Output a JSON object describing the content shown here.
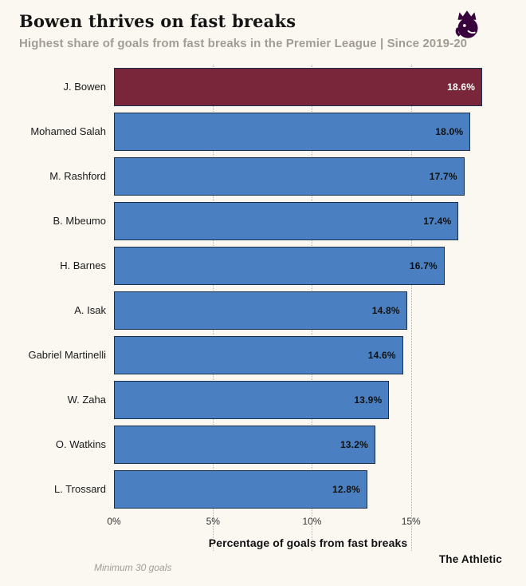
{
  "header": {
    "title": "Bowen thrives on fast breaks",
    "subtitle": "Highest share of goals from fast breaks in the Premier League | Since 2019-20"
  },
  "chart_data": {
    "type": "bar",
    "orientation": "horizontal",
    "title": "Bowen thrives on fast breaks",
    "subtitle": "Highest share of goals from fast breaks in the Premier League | Since 2019-20",
    "categories": [
      "J. Bowen",
      "Mohamed Salah",
      "M. Rashford",
      "B. Mbeumo",
      "H. Barnes",
      "A. Isak",
      "Gabriel Martinelli",
      "W. Zaha",
      "O. Watkins",
      "L. Trossard"
    ],
    "values": [
      18.6,
      18.0,
      17.7,
      17.4,
      16.7,
      14.8,
      14.6,
      13.9,
      13.2,
      12.8
    ],
    "value_labels": [
      "18.6%",
      "18.0%",
      "17.7%",
      "17.4%",
      "16.7%",
      "14.8%",
      "14.6%",
      "13.9%",
      "13.2%",
      "12.8%"
    ],
    "highlight_index": 0,
    "xlabel": "Percentage of goals from fast breaks",
    "xmax": 19.6,
    "xticks": [
      0,
      5,
      10,
      15
    ],
    "xtick_labels": [
      "0%",
      "5%",
      "10%",
      "15%"
    ],
    "grid": "dotted-vertical",
    "legend": "none",
    "colors": {
      "bar": "#4a80c1",
      "highlight": "#7a263a",
      "bar_border": "#1c2f4d",
      "background": "#fbf8f1",
      "logo_purple": "#38003c"
    }
  },
  "footnote": "Minimum 30 goals",
  "brand": "The Athletic",
  "logo": "premier-league-lion"
}
